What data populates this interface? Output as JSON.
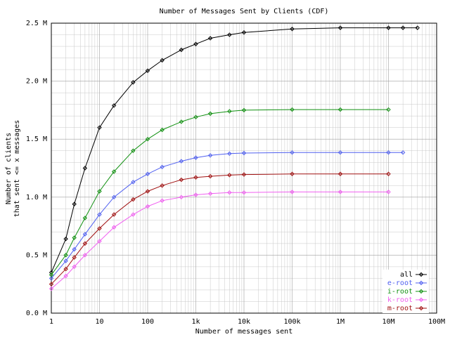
{
  "chart_data": {
    "type": "line",
    "title": "Number of Messages Sent by Clients (CDF)",
    "xlabel": "Number of messages sent",
    "ylabel": [
      "Number of clients",
      "that sent <= x messages"
    ],
    "xscale": "log",
    "grid": true,
    "legend": "lower right",
    "xlim": [
      1,
      100000000
    ],
    "xticks": [
      1,
      10,
      100,
      {
        "value": 1000,
        "label": "1k"
      },
      {
        "value": 10000,
        "label": "10k"
      },
      {
        "value": 100000,
        "label": "100k"
      },
      {
        "value": 1000000,
        "label": "1M"
      },
      {
        "value": 10000000,
        "label": "10M"
      },
      {
        "value": 100000000,
        "label": "100M"
      }
    ],
    "ylim": [
      0,
      2500000
    ],
    "yticks": [
      {
        "value": 0,
        "label": "0.0 M"
      },
      {
        "value": 500000,
        "label": "0.5 M"
      },
      {
        "value": 1000000,
        "label": "1.0 M"
      },
      {
        "value": 1500000,
        "label": "1.5 M"
      },
      {
        "value": 2000000,
        "label": "2.0 M"
      },
      {
        "value": 2500000,
        "label": "2.5 M"
      }
    ],
    "x": [
      1,
      2,
      3,
      5,
      10,
      20,
      50,
      100,
      200,
      500,
      1000,
      2000,
      5000,
      10000,
      100000,
      1000000,
      10000000,
      20000000,
      40000000
    ],
    "series": [
      {
        "name": "all",
        "color": "#000000",
        "values": [
          350000,
          640000,
          940000,
          1250000,
          1600000,
          1790000,
          1990000,
          2090000,
          2180000,
          2270000,
          2320000,
          2370000,
          2400000,
          2420000,
          2450000,
          2460000,
          2460000,
          2460000,
          2460000
        ]
      },
      {
        "name": "e-root",
        "color": "#5060f0",
        "values": [
          300000,
          450000,
          550000,
          680000,
          850000,
          1000000,
          1130000,
          1200000,
          1260000,
          1310000,
          1340000,
          1360000,
          1375000,
          1380000,
          1385000,
          1385000,
          1385000,
          1385000,
          null
        ]
      },
      {
        "name": "i-root",
        "color": "#109010",
        "values": [
          330000,
          500000,
          650000,
          820000,
          1050000,
          1220000,
          1400000,
          1500000,
          1580000,
          1650000,
          1690000,
          1720000,
          1740000,
          1750000,
          1755000,
          1755000,
          1755000,
          null,
          null
        ]
      },
      {
        "name": "k-root",
        "color": "#f060f0",
        "values": [
          210000,
          320000,
          400000,
          500000,
          620000,
          740000,
          850000,
          920000,
          970000,
          1000000,
          1020000,
          1030000,
          1040000,
          1040000,
          1045000,
          1045000,
          1045000,
          null,
          null
        ]
      },
      {
        "name": "m-root",
        "color": "#a01010",
        "values": [
          250000,
          380000,
          480000,
          600000,
          730000,
          850000,
          980000,
          1050000,
          1100000,
          1150000,
          1170000,
          1180000,
          1190000,
          1195000,
          1200000,
          1200000,
          1200000,
          null,
          null
        ]
      }
    ]
  }
}
